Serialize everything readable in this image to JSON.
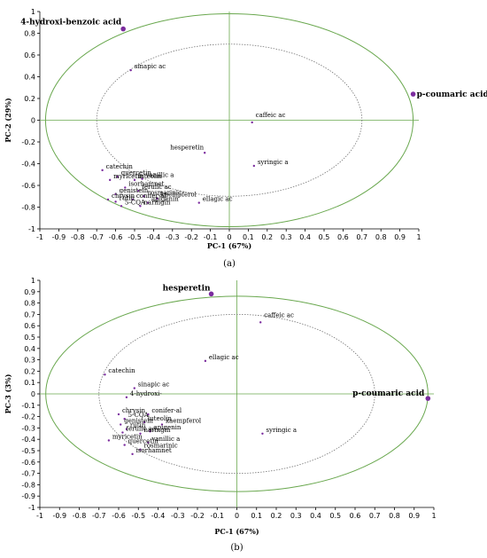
{
  "chart_data": [
    {
      "type": "scatter",
      "panel_label": "(a)",
      "xlabel": "PC-1 (67%)",
      "ylabel": "PC-2 (29%)",
      "xlim": [
        -1,
        1
      ],
      "ylim": [
        -1,
        1
      ],
      "x_ticks": [
        "-1",
        "-0.9",
        "-0.8",
        "-0.7",
        "-0.6",
        "-0.5",
        "-0.4",
        "-0.3",
        "-0.2",
        "-0.1",
        "0",
        "0.1",
        "0.2",
        "0.3",
        "0.4",
        "0.5",
        "0.6",
        "0.7",
        "0.8",
        "0.9",
        "1"
      ],
      "y_ticks": [
        "-1",
        "-0.8",
        "-0.6",
        "-0.4",
        "-0.2",
        "0",
        "0.2",
        "0.4",
        "0.6",
        "0.8",
        "1"
      ],
      "grid": false,
      "colors": {
        "point": "#7b2c9e",
        "ellipse": "#6aa84f",
        "axis": "#6aa84f"
      },
      "points": [
        {
          "label": "4-hydroxi-benzoic acid",
          "x": -0.56,
          "y": 0.84,
          "big": true
        },
        {
          "label": "sinapic ac",
          "x": -0.52,
          "y": 0.46,
          "big": false
        },
        {
          "label": "p-coumaric acid",
          "x": 0.97,
          "y": 0.24,
          "big": true
        },
        {
          "label": "caffeic ac",
          "x": 0.12,
          "y": -0.02,
          "big": false
        },
        {
          "label": "hesperetin",
          "x": -0.13,
          "y": -0.3,
          "big": false
        },
        {
          "label": "syringic a",
          "x": 0.13,
          "y": -0.42,
          "big": false
        },
        {
          "label": "catechin",
          "x": -0.67,
          "y": -0.46,
          "big": false
        },
        {
          "label": "quercetin",
          "x": -0.59,
          "y": -0.52,
          "big": false
        },
        {
          "label": "myricetin",
          "x": -0.63,
          "y": -0.55,
          "big": false
        },
        {
          "label": "luteolin",
          "x": -0.5,
          "y": -0.55,
          "big": false
        },
        {
          "label": "vanillic a",
          "x": -0.46,
          "y": -0.54,
          "big": false
        },
        {
          "label": "isorhamnet",
          "x": -0.55,
          "y": -0.62,
          "big": false
        },
        {
          "label": "ferulic ac",
          "x": -0.48,
          "y": -0.65,
          "big": false
        },
        {
          "label": "genistein",
          "x": -0.6,
          "y": -0.68,
          "big": false
        },
        {
          "label": "rosmarinic",
          "x": -0.45,
          "y": -0.7,
          "big": false
        },
        {
          "label": "kaempferol",
          "x": -0.38,
          "y": -0.72,
          "big": false
        },
        {
          "label": "conifer-al",
          "x": -0.51,
          "y": -0.73,
          "big": false
        },
        {
          "label": "chrysin",
          "x": -0.64,
          "y": -0.73,
          "big": false
        },
        {
          "label": "rutin",
          "x": -0.6,
          "y": -0.75,
          "big": false
        },
        {
          "label": "apigenin",
          "x": -0.43,
          "y": -0.76,
          "big": false
        },
        {
          "label": "ellagic ac",
          "x": -0.16,
          "y": -0.76,
          "big": false
        },
        {
          "label": "5-CQA",
          "x": -0.57,
          "y": -0.79,
          "big": false
        },
        {
          "label": "naringin",
          "x": -0.47,
          "y": -0.79,
          "big": false
        }
      ]
    },
    {
      "type": "scatter",
      "panel_label": "(b)",
      "xlabel": "PC-1 (67%)",
      "ylabel": "PC-3 (3%)",
      "xlim": [
        -1,
        1
      ],
      "ylim": [
        -1,
        1
      ],
      "x_ticks": [
        "-1",
        "-0.9",
        "-0.8",
        "-0.7",
        "-0.6",
        "-0.5",
        "-0.4",
        "-0.3",
        "-0.2",
        "-0.1",
        "0",
        "0.1",
        "0.2",
        "0.3",
        "0.4",
        "0.5",
        "0.6",
        "0.7",
        "0.8",
        "0.9",
        "1"
      ],
      "y_ticks": [
        "-1",
        "-0.9",
        "-0.8",
        "-0.7",
        "-0.6",
        "-0.5",
        "-0.4",
        "-0.3",
        "-0.2",
        "-0.1",
        "0",
        "0.1",
        "0.2",
        "0.3",
        "0.4",
        "0.5",
        "0.6",
        "0.7",
        "0.8",
        "0.9",
        "1"
      ],
      "grid": false,
      "colors": {
        "point": "#7b2c9e",
        "ellipse": "#6aa84f",
        "axis": "#6aa84f"
      },
      "points": [
        {
          "label": "hesperetin",
          "x": -0.13,
          "y": 0.88,
          "big": true
        },
        {
          "label": "caffeic ac",
          "x": 0.12,
          "y": 0.63,
          "big": false
        },
        {
          "label": "ellagic ac",
          "x": -0.16,
          "y": 0.29,
          "big": false
        },
        {
          "label": "catechin",
          "x": -0.67,
          "y": 0.17,
          "big": false
        },
        {
          "label": "sinapic ac",
          "x": -0.52,
          "y": 0.05,
          "big": false
        },
        {
          "label": "4-hydroxi-",
          "x": -0.56,
          "y": -0.03,
          "big": false
        },
        {
          "label": "p-coumaric acid",
          "x": 0.97,
          "y": -0.04,
          "big": true
        },
        {
          "label": "chrysin",
          "x": -0.6,
          "y": -0.18,
          "big": false
        },
        {
          "label": "conifer-al",
          "x": -0.45,
          "y": -0.18,
          "big": false
        },
        {
          "label": "5-CQA",
          "x": -0.57,
          "y": -0.22,
          "big": false
        },
        {
          "label": "luteolin",
          "x": -0.47,
          "y": -0.25,
          "big": false
        },
        {
          "label": "genistein",
          "x": -0.59,
          "y": -0.27,
          "big": false
        },
        {
          "label": "kaempferol",
          "x": -0.38,
          "y": -0.27,
          "big": false
        },
        {
          "label": "rutin",
          "x": -0.56,
          "y": -0.31,
          "big": false
        },
        {
          "label": "ferulic ac",
          "x": -0.58,
          "y": -0.34,
          "big": false
        },
        {
          "label": "apigenin",
          "x": -0.44,
          "y": -0.33,
          "big": false
        },
        {
          "label": "naringin",
          "x": -0.49,
          "y": -0.35,
          "big": false
        },
        {
          "label": "syringic a",
          "x": 0.13,
          "y": -0.35,
          "big": false
        },
        {
          "label": "myricetin",
          "x": -0.65,
          "y": -0.41,
          "big": false
        },
        {
          "label": "vanillic a",
          "x": -0.45,
          "y": -0.43,
          "big": false
        },
        {
          "label": "quercetin",
          "x": -0.57,
          "y": -0.45,
          "big": false
        },
        {
          "label": "rosmarinic",
          "x": -0.49,
          "y": -0.49,
          "big": false
        },
        {
          "label": "isorhamnet",
          "x": -0.53,
          "y": -0.53,
          "big": false
        }
      ]
    }
  ]
}
